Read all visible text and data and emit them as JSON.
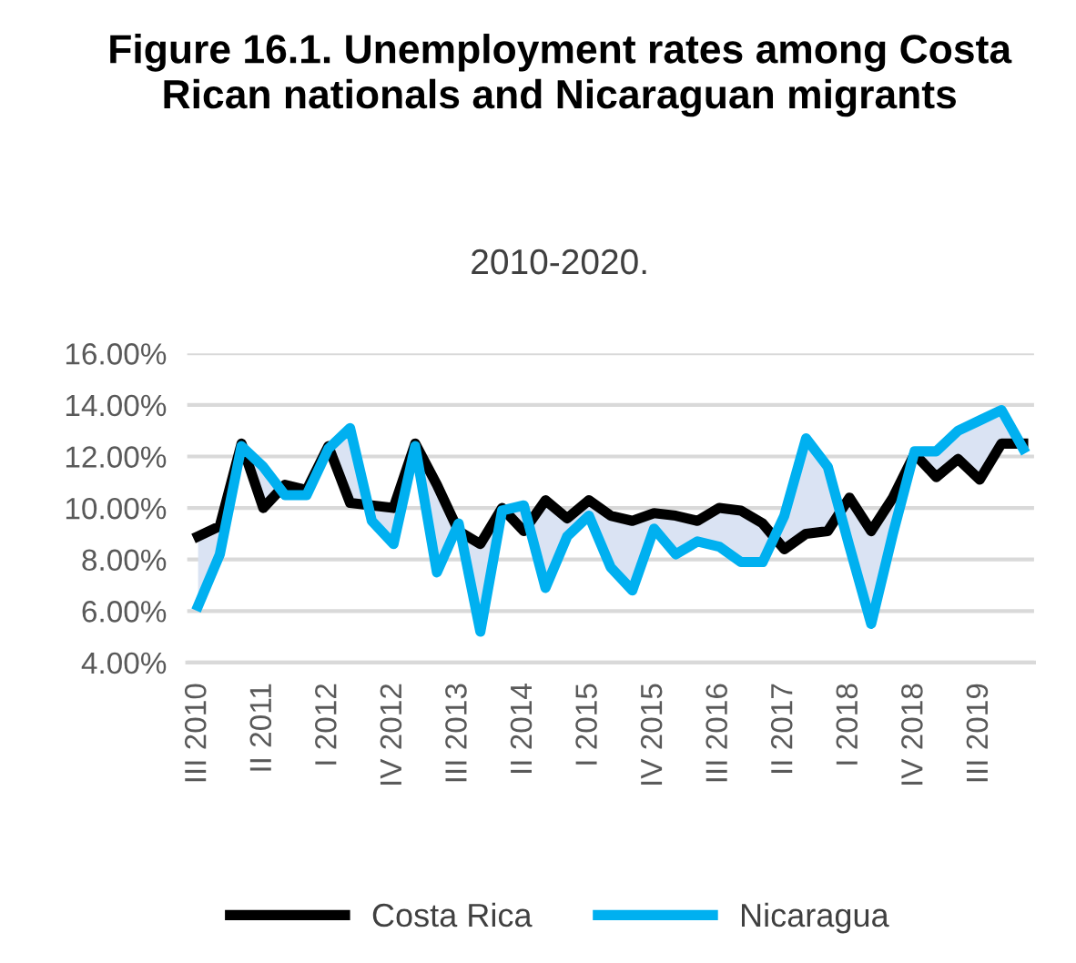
{
  "chart_data": {
    "type": "line",
    "title": "Figure 16.1. Unemployment rates among Costa Rican nationals and Nicaraguan migrants",
    "subtitle": "2010-2020.",
    "categories": [
      "III 2010",
      null,
      null,
      "II 2011",
      null,
      null,
      "I 2012",
      null,
      null,
      "IV 2012",
      null,
      null,
      "III 2013",
      null,
      null,
      "II 2014",
      null,
      null,
      "I 2015",
      null,
      null,
      "IV 2015",
      null,
      null,
      "III 2016",
      null,
      null,
      "II 2017",
      null,
      null,
      "I 2018",
      null,
      null,
      "IV 2018",
      null,
      null,
      "III 2019",
      null,
      null
    ],
    "series": [
      {
        "name": "Costa Rica",
        "color": "#000000",
        "values": [
          8.9,
          9.3,
          12.5,
          10.0,
          10.9,
          10.7,
          12.4,
          10.2,
          10.1,
          10.0,
          12.5,
          10.9,
          9.1,
          8.6,
          10.0,
          9.1,
          10.3,
          9.6,
          10.3,
          9.7,
          9.5,
          9.8,
          9.7,
          9.5,
          10.0,
          9.9,
          9.4,
          8.4,
          9.0,
          9.1,
          10.4,
          9.1,
          10.4,
          12.1,
          11.2,
          11.9,
          11.1,
          12.5,
          12.5
        ]
      },
      {
        "name": "Nicaragua",
        "color": "#00b0f0",
        "values": [
          6.2,
          8.2,
          12.4,
          11.6,
          10.5,
          10.5,
          12.3,
          13.1,
          9.5,
          8.6,
          12.4,
          7.5,
          9.4,
          5.2,
          9.9,
          10.1,
          6.9,
          8.9,
          9.7,
          7.7,
          6.8,
          9.2,
          8.2,
          8.7,
          8.5,
          7.9,
          7.9,
          9.7,
          12.7,
          11.6,
          8.5,
          5.5,
          9.0,
          12.2,
          12.2,
          13.0,
          13.4,
          13.8,
          12.3
        ]
      }
    ],
    "ylim": [
      4,
      16
    ],
    "yticks": [
      {
        "value": 4,
        "label": "4.00%"
      },
      {
        "value": 6,
        "label": "6.00%"
      },
      {
        "value": 8,
        "label": "8.00%"
      },
      {
        "value": 10,
        "label": "10.00%"
      },
      {
        "value": 12,
        "label": "12.00%"
      },
      {
        "value": 14,
        "label": "14.00%"
      },
      {
        "value": 16,
        "label": "16.00%"
      }
    ],
    "grid": "y",
    "legend": "bottom",
    "marker": "none",
    "line_style": "solid"
  }
}
